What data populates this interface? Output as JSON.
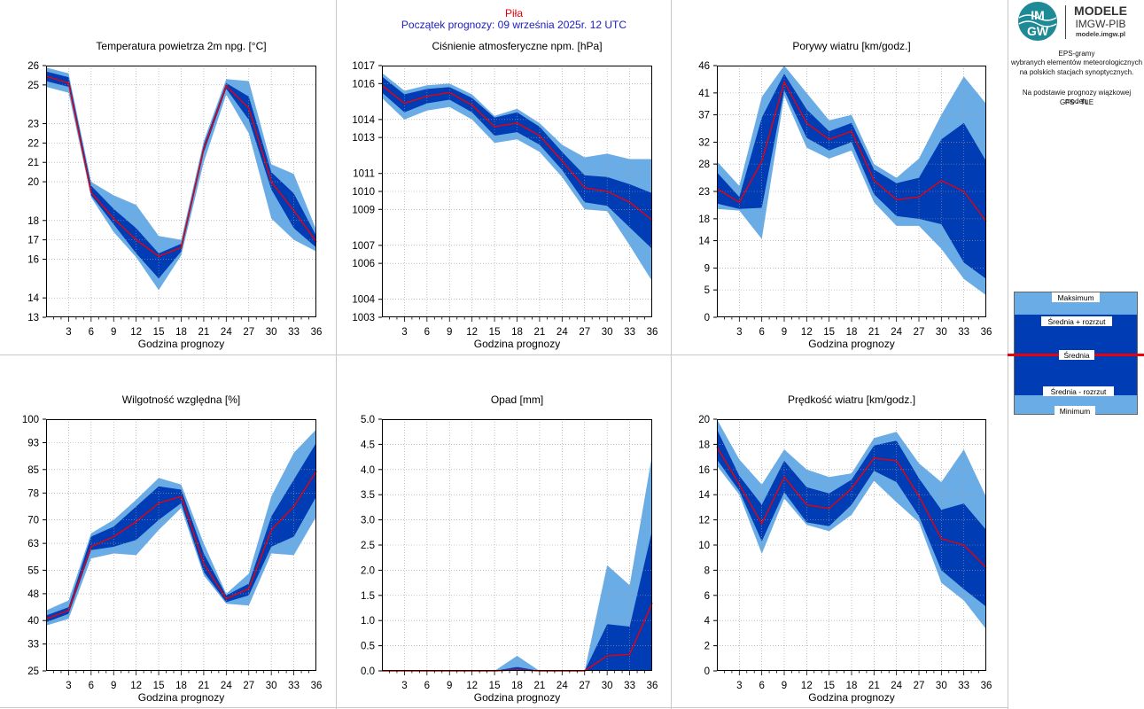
{
  "header": {
    "station": "Piła",
    "forecast_start": "Początek prognozy: 09 września 2025r. 12 UTC"
  },
  "logo": {
    "text_lines": [
      "IM",
      "GW"
    ],
    "brand": "MODELE",
    "org": "IMGW-PIB",
    "url": "modele.imgw.pl"
  },
  "info": {
    "line1": "EPS-gramy",
    "line2": "wybranych elementów meteorologicznych",
    "line3": "na polskich stacjach  synoptycznych.",
    "line4": "Na podstawie prognozy wiązkowej modelu",
    "line5": "GFS - TLE"
  },
  "legend": {
    "max": "Maksimum",
    "mean_plus": "Średnia + rozrzut",
    "mean": "Średnia",
    "mean_minus": "Średnia - rozrzut",
    "min": "Minimum"
  },
  "colors": {
    "outer_band": "#6aade6",
    "inner_band": "#003cb4",
    "mean_line": "#e8000b",
    "grid": "#9a9a9a",
    "separator": "#c8c8c8"
  },
  "chart_data": [
    {
      "type": "area",
      "title": "Temperatura powietrza 2m npg. [°C]",
      "xlabel": "Godzina prognozy",
      "x": [
        0,
        3,
        6,
        9,
        12,
        15,
        18,
        21,
        24,
        27,
        30,
        33,
        36
      ],
      "xticks": [
        3,
        6,
        9,
        12,
        15,
        18,
        21,
        24,
        27,
        30,
        33,
        36
      ],
      "ylim": [
        13,
        26
      ],
      "yticks": [
        13,
        14,
        16,
        17,
        18,
        20,
        21,
        22,
        23,
        25,
        26
      ],
      "ytick_labels": [
        "13",
        "14",
        "16",
        "17",
        "18",
        "20",
        "21",
        "22",
        "23",
        "25",
        "26"
      ],
      "series": [
        {
          "name": "Maksimum",
          "values": [
            25.9,
            25.6,
            20.0,
            19.3,
            18.8,
            17.2,
            17.0,
            22.1,
            25.3,
            25.2,
            20.9,
            20.4,
            17.5
          ]
        },
        {
          "name": "Średnia + rozrzut",
          "values": [
            25.7,
            25.4,
            19.8,
            18.6,
            17.6,
            16.3,
            16.8,
            21.9,
            25.1,
            24.4,
            20.5,
            19.4,
            17.2
          ]
        },
        {
          "name": "Średnia",
          "values": [
            25.45,
            25.1,
            19.45,
            18.1,
            17.0,
            16.15,
            16.6,
            21.7,
            24.95,
            23.8,
            20.0,
            18.5,
            16.9
          ]
        },
        {
          "name": "Średnia - rozrzut",
          "values": [
            25.2,
            24.9,
            19.3,
            17.8,
            16.3,
            15.0,
            16.4,
            21.5,
            24.8,
            23.2,
            19.6,
            17.6,
            16.6
          ]
        },
        {
          "name": "Minimum",
          "values": [
            24.9,
            24.6,
            19.2,
            17.4,
            16.1,
            14.4,
            16.2,
            21.0,
            24.5,
            22.5,
            18.1,
            17.0,
            16.4
          ]
        }
      ]
    },
    {
      "type": "area",
      "title": "Ciśnienie atmosferyczne npm. [hPa]",
      "xlabel": "Godzina prognozy",
      "x": [
        0,
        3,
        6,
        9,
        12,
        15,
        18,
        21,
        24,
        27,
        30,
        33,
        36
      ],
      "xticks": [
        3,
        6,
        9,
        12,
        15,
        18,
        21,
        24,
        27,
        30,
        33,
        36
      ],
      "ylim": [
        1003,
        1017
      ],
      "yticks": [
        1003,
        1004,
        1006,
        1007,
        1009,
        1010,
        1011,
        1013,
        1014,
        1016,
        1017
      ],
      "ytick_labels": [
        "1003",
        "1004",
        "1006",
        "1007",
        "1009",
        "1010",
        "1011",
        "1013",
        "1014",
        "1016",
        "1017"
      ],
      "series": [
        {
          "name": "Maksimum",
          "values": [
            1016.6,
            1015.6,
            1015.9,
            1016.0,
            1015.4,
            1014.2,
            1014.6,
            1013.8,
            1012.6,
            1011.9,
            1012.1,
            1011.8,
            1011.8
          ]
        },
        {
          "name": "Średnia + rozrzut",
          "values": [
            1016.4,
            1015.4,
            1015.7,
            1015.8,
            1015.2,
            1014.1,
            1014.4,
            1013.6,
            1012.2,
            1010.9,
            1010.8,
            1010.4,
            1009.9
          ]
        },
        {
          "name": "Średnia",
          "values": [
            1015.9,
            1014.9,
            1015.3,
            1015.5,
            1014.8,
            1013.6,
            1013.8,
            1013.1,
            1011.7,
            1010.2,
            1010.0,
            1009.4,
            1008.4
          ]
        },
        {
          "name": "Średnia - rozrzut",
          "values": [
            1015.5,
            1014.4,
            1014.9,
            1015.1,
            1014.4,
            1013.1,
            1013.3,
            1012.6,
            1011.2,
            1009.4,
            1009.2,
            1008.0,
            1006.8
          ]
        },
        {
          "name": "Minimum",
          "values": [
            1015.2,
            1014.0,
            1014.5,
            1014.7,
            1014.0,
            1012.7,
            1012.9,
            1012.2,
            1010.8,
            1009.0,
            1008.9,
            1007.0,
            1005.0
          ]
        }
      ]
    },
    {
      "type": "area",
      "title": "Porywy wiatru [km/godz.]",
      "xlabel": "Godzina prognozy",
      "x": [
        0,
        3,
        6,
        9,
        12,
        15,
        18,
        21,
        24,
        27,
        30,
        33,
        36
      ],
      "xticks": [
        3,
        6,
        9,
        12,
        15,
        18,
        21,
        24,
        27,
        30,
        33,
        36
      ],
      "ylim": [
        0,
        46
      ],
      "yticks": [
        0,
        5,
        9,
        14,
        18,
        23,
        28,
        32,
        37,
        41,
        46
      ],
      "ytick_labels": [
        "0",
        "5",
        "9",
        "14",
        "18",
        "23",
        "28",
        "32",
        "37",
        "41",
        "46"
      ],
      "series": [
        {
          "name": "Maksimum",
          "values": [
            28.5,
            24.0,
            40.3,
            46.0,
            41.0,
            36.0,
            37.0,
            28.0,
            25.5,
            29.0,
            37.0,
            44.0,
            39.0
          ]
        },
        {
          "name": "Średnia + rozrzut",
          "values": [
            26.5,
            22.0,
            36.5,
            44.5,
            38.0,
            34.0,
            35.5,
            27.0,
            24.5,
            25.5,
            32.5,
            35.5,
            28.5
          ]
        },
        {
          "name": "Średnia",
          "values": [
            23.5,
            21.0,
            28.5,
            43.0,
            35.5,
            32.5,
            34.0,
            25.0,
            21.5,
            22.0,
            25.0,
            23.0,
            17.5
          ]
        },
        {
          "name": "Średnia - rozrzut",
          "values": [
            20.8,
            19.8,
            20.0,
            41.5,
            32.8,
            30.5,
            32.0,
            22.5,
            18.5,
            18.0,
            17.0,
            10.0,
            7.0
          ]
        },
        {
          "name": "Minimum",
          "values": [
            19.8,
            19.5,
            14.3,
            40.5,
            31.0,
            29.0,
            30.5,
            21.0,
            16.7,
            16.7,
            12.5,
            7.0,
            4.0
          ]
        }
      ]
    },
    {
      "type": "area",
      "title": "Wilgotność względna [%]",
      "xlabel": "Godzina prognozy",
      "x": [
        0,
        3,
        6,
        9,
        12,
        15,
        18,
        21,
        24,
        27,
        30,
        33,
        36
      ],
      "xticks": [
        3,
        6,
        9,
        12,
        15,
        18,
        21,
        24,
        27,
        30,
        33,
        36
      ],
      "ylim": [
        25,
        100
      ],
      "yticks": [
        25,
        33,
        40,
        48,
        55,
        63,
        70,
        78,
        85,
        93,
        100
      ],
      "ytick_labels": [
        "25",
        "33",
        "40",
        "48",
        "55",
        "63",
        "70",
        "78",
        "85",
        "93",
        "100"
      ],
      "series": [
        {
          "name": "Maksimum",
          "values": [
            43.0,
            46.0,
            66.0,
            70.0,
            76.0,
            82.5,
            80.5,
            63.0,
            48.0,
            54.0,
            77.0,
            90.0,
            97.0
          ]
        },
        {
          "name": "Średnia + rozrzut",
          "values": [
            41.5,
            44.0,
            65.0,
            68.0,
            74.0,
            80.0,
            79.0,
            60.0,
            47.5,
            51.0,
            71.0,
            82.0,
            93.0
          ]
        },
        {
          "name": "Średnia",
          "values": [
            40.5,
            43.0,
            62.0,
            65.0,
            69.5,
            75.0,
            77.0,
            57.0,
            46.5,
            49.5,
            67.0,
            74.0,
            84.5
          ]
        },
        {
          "name": "Średnia - rozrzut",
          "values": [
            39.5,
            42.0,
            61.0,
            62.0,
            64.0,
            70.0,
            75.0,
            54.5,
            45.5,
            47.5,
            62.0,
            65.0,
            77.0
          ]
        },
        {
          "name": "Minimum",
          "values": [
            38.5,
            40.5,
            58.5,
            60.0,
            59.5,
            67.0,
            73.5,
            53.5,
            45.0,
            44.5,
            60.0,
            59.5,
            71.0
          ]
        }
      ]
    },
    {
      "type": "area",
      "title": "Opad [mm]",
      "xlabel": "Godzina prognozy",
      "x": [
        0,
        3,
        6,
        9,
        12,
        15,
        18,
        21,
        24,
        27,
        30,
        33,
        36
      ],
      "xticks": [
        3,
        6,
        9,
        12,
        15,
        18,
        21,
        24,
        27,
        30,
        33,
        36
      ],
      "ylim": [
        0,
        5
      ],
      "yticks": [
        0,
        0.5,
        1,
        1.5,
        2,
        2.5,
        3,
        3.5,
        4,
        4.5,
        5
      ],
      "ytick_labels": [
        "0.0",
        "0.5",
        "1.0",
        "1.5",
        "2.0",
        "2.5",
        "3.0",
        "3.5",
        "4.0",
        "4.5",
        "5.0"
      ],
      "series": [
        {
          "name": "Maksimum",
          "values": [
            0,
            0,
            0,
            0,
            0,
            0,
            0.3,
            0,
            0,
            0,
            2.1,
            1.7,
            4.3
          ]
        },
        {
          "name": "Średnia + rozrzut",
          "values": [
            0,
            0,
            0,
            0,
            0,
            0,
            0.08,
            0,
            0,
            0,
            0.93,
            0.88,
            2.8
          ]
        },
        {
          "name": "Średnia",
          "values": [
            0,
            0,
            0,
            0,
            0,
            0,
            0.02,
            0,
            0,
            0,
            0.3,
            0.33,
            1.35
          ]
        },
        {
          "name": "Średnia - rozrzut",
          "values": [
            0,
            0,
            0,
            0,
            0,
            0,
            0,
            0,
            0,
            0,
            0,
            0,
            0
          ]
        },
        {
          "name": "Minimum",
          "values": [
            0,
            0,
            0,
            0,
            0,
            0,
            0,
            0,
            0,
            0,
            0,
            0,
            0
          ]
        }
      ]
    },
    {
      "type": "area",
      "title": "Prędkość wiatru [km/godz.]",
      "xlabel": "Godzina prognozy",
      "x": [
        0,
        3,
        6,
        9,
        12,
        15,
        18,
        21,
        24,
        27,
        30,
        33,
        36
      ],
      "xticks": [
        3,
        6,
        9,
        12,
        15,
        18,
        21,
        24,
        27,
        30,
        33,
        36
      ],
      "ylim": [
        0,
        20
      ],
      "yticks": [
        0,
        2,
        4,
        6,
        8,
        10,
        12,
        14,
        16,
        18,
        20
      ],
      "ytick_labels": [
        "0",
        "2",
        "4",
        "6",
        "8",
        "10",
        "12",
        "14",
        "16",
        "18",
        "20"
      ],
      "series": [
        {
          "name": "Maksimum",
          "values": [
            20.0,
            16.8,
            14.8,
            17.6,
            16.0,
            15.4,
            15.7,
            18.5,
            19.0,
            16.5,
            15.0,
            17.6,
            13.8
          ]
        },
        {
          "name": "Średnia + rozrzut",
          "values": [
            19.2,
            15.5,
            13.2,
            16.7,
            14.6,
            14.1,
            15.2,
            17.9,
            18.3,
            15.3,
            12.8,
            13.3,
            11.2
          ]
        },
        {
          "name": "Średnia",
          "values": [
            17.8,
            14.8,
            11.7,
            15.4,
            13.2,
            12.9,
            14.5,
            16.9,
            16.7,
            13.9,
            10.5,
            10.0,
            8.2
          ]
        },
        {
          "name": "Średnia - rozrzut",
          "values": [
            16.8,
            14.3,
            10.3,
            14.2,
            11.8,
            11.5,
            13.2,
            15.9,
            15.0,
            12.3,
            8.0,
            6.5,
            5.1
          ]
        },
        {
          "name": "Minimum",
          "values": [
            16.3,
            14.0,
            9.3,
            13.7,
            11.6,
            11.1,
            12.4,
            15.1,
            13.4,
            11.8,
            7.0,
            5.6,
            3.3
          ]
        }
      ]
    }
  ]
}
